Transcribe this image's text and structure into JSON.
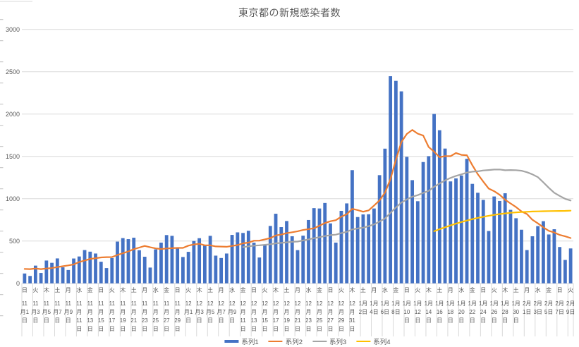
{
  "title": "東京都の新規感染者数",
  "colors": {
    "bar": "#4472C4",
    "line2": "#ED7D31",
    "line3": "#A5A5A5",
    "line4": "#FFC000",
    "gridline": "#D9D9D9",
    "axis_text": "#595959"
  },
  "legend": {
    "items": [
      {
        "label": "系列1",
        "type": "bar",
        "color": "#4472C4"
      },
      {
        "label": "系列2",
        "type": "line",
        "color": "#ED7D31"
      },
      {
        "label": "系列3",
        "type": "line",
        "color": "#A5A5A5"
      },
      {
        "label": "系列4",
        "type": "line",
        "color": "#FFC000"
      }
    ]
  },
  "chart_data": {
    "type": "combo",
    "title": "東京都の新規感染者数",
    "xlabel": "",
    "ylabel": "",
    "ylim": [
      0,
      3000
    ],
    "y_ticks": [
      "0",
      "500",
      "1000",
      "1500",
      "2000",
      "2500",
      "3000"
    ],
    "grid": true,
    "legend_position": "bottom",
    "x_tick_labels": [
      {
        "dow": "日",
        "date": "11月1日"
      },
      {
        "dow": "火",
        "date": "11月3日"
      },
      {
        "dow": "木",
        "date": "11月5日"
      },
      {
        "dow": "土",
        "date": "11月7日"
      },
      {
        "dow": "月",
        "date": "11月9日"
      },
      {
        "dow": "水",
        "date": "11月11日"
      },
      {
        "dow": "金",
        "date": "11月13日"
      },
      {
        "dow": "日",
        "date": "11月15日"
      },
      {
        "dow": "火",
        "date": "11月17日"
      },
      {
        "dow": "木",
        "date": "11月19日"
      },
      {
        "dow": "土",
        "date": "11月21日"
      },
      {
        "dow": "月",
        "date": "11月23日"
      },
      {
        "dow": "水",
        "date": "11月25日"
      },
      {
        "dow": "金",
        "date": "11月27日"
      },
      {
        "dow": "日",
        "date": "11月29日"
      },
      {
        "dow": "火",
        "date": "12月1日"
      },
      {
        "dow": "木",
        "date": "12月3日"
      },
      {
        "dow": "土",
        "date": "12月5日"
      },
      {
        "dow": "月",
        "date": "12月7日"
      },
      {
        "dow": "水",
        "date": "12月9日"
      },
      {
        "dow": "金",
        "date": "12月11日"
      },
      {
        "dow": "日",
        "date": "12月13日"
      },
      {
        "dow": "火",
        "date": "12月15日"
      },
      {
        "dow": "木",
        "date": "12月17日"
      },
      {
        "dow": "土",
        "date": "12月19日"
      },
      {
        "dow": "月",
        "date": "12月21日"
      },
      {
        "dow": "水",
        "date": "12月23日"
      },
      {
        "dow": "金",
        "date": "12月25日"
      },
      {
        "dow": "日",
        "date": "12月27日"
      },
      {
        "dow": "火",
        "date": "12月29日"
      },
      {
        "dow": "木",
        "date": "12月31日"
      },
      {
        "dow": "土",
        "date": "1月2日"
      },
      {
        "dow": "月",
        "date": "1月4日"
      },
      {
        "dow": "水",
        "date": "1月6日"
      },
      {
        "dow": "金",
        "date": "1月8日"
      },
      {
        "dow": "日",
        "date": "1月10日"
      },
      {
        "dow": "火",
        "date": "1月12日"
      },
      {
        "dow": "木",
        "date": "1月14日"
      },
      {
        "dow": "土",
        "date": "1月16日"
      },
      {
        "dow": "月",
        "date": "1月18日"
      },
      {
        "dow": "水",
        "date": "1月20日"
      },
      {
        "dow": "金",
        "date": "1月22日"
      },
      {
        "dow": "日",
        "date": "1月24日"
      },
      {
        "dow": "火",
        "date": "1月26日"
      },
      {
        "dow": "木",
        "date": "1月28日"
      },
      {
        "dow": "土",
        "date": "1月30日"
      },
      {
        "dow": "月",
        "date": "2月1日"
      },
      {
        "dow": "水",
        "date": "2月3日"
      },
      {
        "dow": "金",
        "date": "2月5日"
      },
      {
        "dow": "日",
        "date": "2月7日"
      },
      {
        "dow": "火",
        "date": "2月9日"
      }
    ],
    "series": [
      {
        "name": "系列1",
        "type": "bar",
        "color": "#4472C4",
        "start_index": 0,
        "values": [
          116,
          87,
          209,
          122,
          269,
          242,
          294,
          189,
          157,
          293,
          317,
          393,
          374,
          352,
          255,
          180,
          298,
          493,
          534,
          522,
          539,
          391,
          314,
          186,
          401,
          481,
          570,
          561,
          418,
          311,
          372,
          500,
          533,
          449,
          561,
          327,
          299,
          352,
          572,
          602,
          595,
          621,
          480,
          305,
          460,
          678,
          822,
          664,
          736,
          556,
          392,
          563,
          748,
          888,
          884,
          949,
          708,
          481,
          856,
          944,
          1337,
          783,
          814,
          816,
          884,
          1278,
          1591,
          2447,
          2392,
          2268,
          1494,
          1219,
          970,
          1433,
          1502,
          2001,
          1809,
          1592,
          1204,
          1240,
          1274,
          1471,
          1175,
          1070,
          986,
          618,
          1026,
          973,
          1064,
          868,
          769,
          633,
          393,
          556,
          676,
          734,
          577,
          639,
          429,
          276,
          412
        ]
      },
      {
        "name": "系列2",
        "type": "line",
        "color": "#ED7D31",
        "start_index": 0,
        "values": [
          169.6,
          167.4,
          174.7,
          167.7,
          174.6,
          180,
          191.3,
          201.7,
          211.7,
          223.7,
          251.6,
          269.3,
          288.1,
          296.4,
          305.9,
          309.1,
          309.9,
          335,
          355.1,
          376.3,
          403,
          422.4,
          441.6,
          425.6,
          412.4,
          404.9,
          411.7,
          414.9,
          418.7,
          418.3,
          444.9,
          459,
          466.4,
          449.1,
          449.1,
          436.1,
          434.4,
          431.6,
          441.9,
          451.7,
          472.6,
          481.1,
          503,
          503.9,
          519.3,
          534.4,
          565.9,
          575.7,
          592.1,
          603,
          615.4,
          630.1,
          640.1,
          649.6,
          681,
          711.4,
          733.1,
          745.9,
          787.7,
          815.7,
          879.9,
          865.4,
          846.1,
          861.6,
          919.1,
          979.4,
          1071.9,
          1230.4,
          1460.3,
          1668,
          1764.9,
          1812.7,
          1768.7,
          1746.1,
          1611.1,
          1555.3,
          1489.7,
          1503.7,
          1501.6,
          1540.1,
          1517.4,
          1513,
          1395,
          1289.4,
          1202.9,
          1119.1,
          1088.6,
          1045.6,
          987.4,
          943.6,
          900.6,
          850.1,
          818,
          750.9,
          708.4,
          661.3,
          619.7,
          601.1,
          572,
          555.3,
          534.7
        ]
      },
      {
        "name": "系列3",
        "type": "line",
        "color": "#A5A5A5",
        "start_index": 40,
        "values": [
          427.4,
          437,
          445.1,
          449.5,
          455.3,
          461.9,
          472.2,
          477.3,
          484.3,
          490.2,
          493,
          506.5,
          518.9,
          533.4,
          544.6,
          558.5,
          568.8,
          574.9,
          592.2,
          608,
          636.8,
          648.7,
          657.7,
          675.2,
          696.1,
          729.1,
          765.5,
          831.4,
          895.6,
          954.4,
          990.6,
          1023.3,
          1041.5,
          1068.5,
          1092.8,
          1140.5,
          1178.8,
          1215.8,
          1244.8,
          1269,
          1287.8,
          1308.6,
          1319,
          1323.3,
          1333.3,
          1338.1,
          1344.2,
          1345.3,
          1335.5,
          1338.5,
          1336.9,
          1330.4,
          1312.9,
          1287.1,
          1254.4,
          1193.2,
          1128.4,
          1070.2,
          1032.2,
          998.5,
          978.6
        ]
      },
      {
        "name": "系列4",
        "type": "line",
        "color": "#FFC000",
        "start_index": 75,
        "values": [
          615,
          640,
          662,
          684,
          705,
          724,
          742,
          758,
          773,
          786,
          798,
          808,
          818,
          826,
          833,
          838,
          842,
          845,
          848,
          850,
          852,
          853,
          854,
          855,
          856,
          858
        ]
      }
    ]
  }
}
